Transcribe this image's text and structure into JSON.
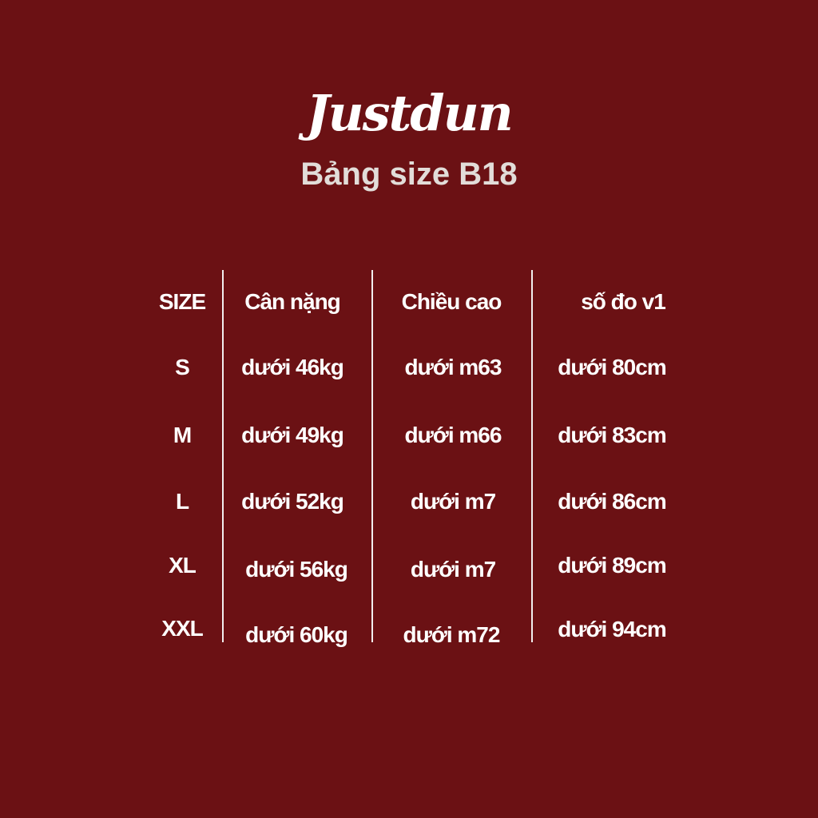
{
  "brand": "Justdun",
  "subtitle": "Bảng size B18",
  "colors": {
    "background": "#6b1114",
    "text": "#ffffff",
    "subtitle": "#e2ddd9"
  },
  "table": {
    "headers": [
      "SIZE",
      "Cân nặng",
      "Chiều cao",
      "số đo v1"
    ],
    "rows": [
      [
        "S",
        "dưới 46kg",
        "dưới m63",
        "dưới 80cm"
      ],
      [
        "M",
        "dưới 49kg",
        "dưới m66",
        "dưới 83cm"
      ],
      [
        "L",
        "dưới 52kg",
        "dưới m7",
        "dưới 86cm"
      ],
      [
        "XL",
        "dưới 56kg",
        "dưới m7",
        "dưới 89cm"
      ],
      [
        "XXL",
        "dưới 60kg",
        "dưới m72",
        "dưới 94cm"
      ]
    ]
  }
}
